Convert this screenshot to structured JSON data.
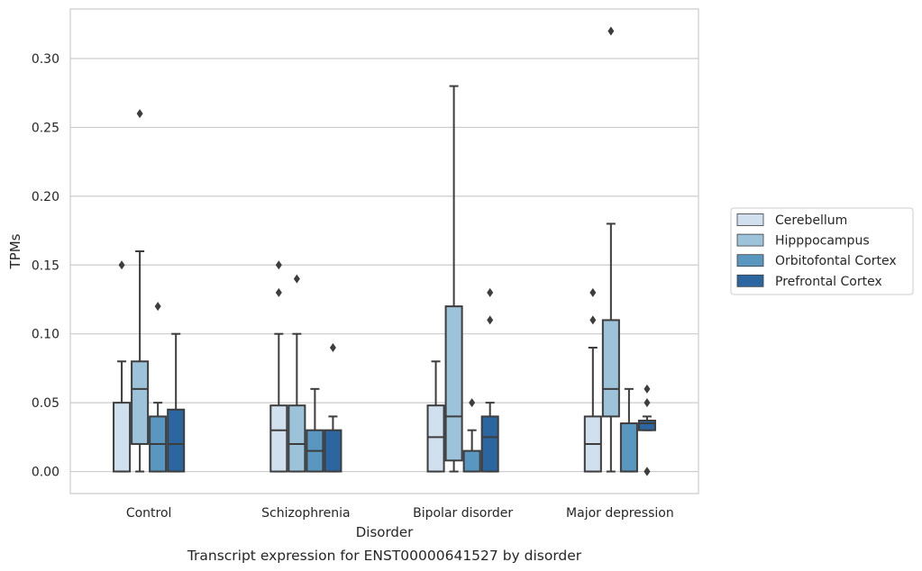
{
  "chart_data": {
    "type": "box",
    "xlabel": "Disorder",
    "ylabel": "TPMs",
    "caption": "Transcript expression for ENST00000641527 by disorder",
    "categories": [
      "Control",
      "Schizophrenia",
      "Bipolar disorder",
      "Major depression"
    ],
    "ylim": [
      -0.016,
      0.336
    ],
    "yticks": [
      0.0,
      0.05,
      0.1,
      0.15,
      0.2,
      0.25,
      0.3
    ],
    "ytick_labels": [
      "0.00",
      "0.05",
      "0.10",
      "0.15",
      "0.20",
      "0.25",
      "0.30"
    ],
    "grid": true,
    "legend_position": "right",
    "series": [
      {
        "name": "Cerebellum",
        "color": "#d0e0ef",
        "boxes": [
          {
            "q1": 0.0,
            "median": 0.0,
            "q3": 0.05,
            "whisker_low": 0.0,
            "whisker_high": 0.08,
            "outliers": [
              0.15
            ]
          },
          {
            "q1": 0.0,
            "median": 0.03,
            "q3": 0.048,
            "whisker_low": 0.0,
            "whisker_high": 0.1,
            "outliers": [
              0.13,
              0.15
            ]
          },
          {
            "q1": 0.0,
            "median": 0.025,
            "q3": 0.048,
            "whisker_low": 0.0,
            "whisker_high": 0.08,
            "outliers": []
          },
          {
            "q1": 0.0,
            "median": 0.02,
            "q3": 0.04,
            "whisker_low": 0.0,
            "whisker_high": 0.09,
            "outliers": [
              0.11,
              0.13
            ]
          }
        ]
      },
      {
        "name": "Hipppocampus",
        "color": "#9cc3da",
        "boxes": [
          {
            "q1": 0.02,
            "median": 0.06,
            "q3": 0.08,
            "whisker_low": 0.0,
            "whisker_high": 0.16,
            "outliers": [
              0.26
            ]
          },
          {
            "q1": 0.0,
            "median": 0.02,
            "q3": 0.048,
            "whisker_low": 0.0,
            "whisker_high": 0.1,
            "outliers": [
              0.14
            ]
          },
          {
            "q1": 0.008,
            "median": 0.04,
            "q3": 0.12,
            "whisker_low": 0.0,
            "whisker_high": 0.28,
            "outliers": []
          },
          {
            "q1": 0.04,
            "median": 0.06,
            "q3": 0.11,
            "whisker_low": 0.0,
            "whisker_high": 0.18,
            "outliers": [
              0.32
            ]
          }
        ]
      },
      {
        "name": "Orbitofontal Cortex",
        "color": "#5a97c0",
        "boxes": [
          {
            "q1": 0.0,
            "median": 0.02,
            "q3": 0.04,
            "whisker_low": 0.0,
            "whisker_high": 0.05,
            "outliers": [
              0.12
            ]
          },
          {
            "q1": 0.0,
            "median": 0.015,
            "q3": 0.03,
            "whisker_low": 0.0,
            "whisker_high": 0.06,
            "outliers": []
          },
          {
            "q1": 0.0,
            "median": 0.0,
            "q3": 0.015,
            "whisker_low": 0.0,
            "whisker_high": 0.03,
            "outliers": [
              0.05
            ]
          },
          {
            "q1": 0.0,
            "median": 0.0,
            "q3": 0.035,
            "whisker_low": 0.0,
            "whisker_high": 0.06,
            "outliers": []
          }
        ]
      },
      {
        "name": "Prefrontal Cortex",
        "color": "#2b66a1",
        "boxes": [
          {
            "q1": 0.0,
            "median": 0.02,
            "q3": 0.045,
            "whisker_low": 0.0,
            "whisker_high": 0.1,
            "outliers": []
          },
          {
            "q1": 0.0,
            "median": 0.0,
            "q3": 0.03,
            "whisker_low": 0.0,
            "whisker_high": 0.04,
            "outliers": [
              0.09
            ]
          },
          {
            "q1": 0.0,
            "median": 0.025,
            "q3": 0.04,
            "whisker_low": 0.0,
            "whisker_high": 0.05,
            "outliers": [
              0.11,
              0.13
            ]
          },
          {
            "q1": 0.03,
            "median": 0.035,
            "q3": 0.037,
            "whisker_low": 0.03,
            "whisker_high": 0.04,
            "outliers": [
              0.0,
              0.0,
              0.05,
              0.06
            ]
          }
        ]
      }
    ]
  }
}
